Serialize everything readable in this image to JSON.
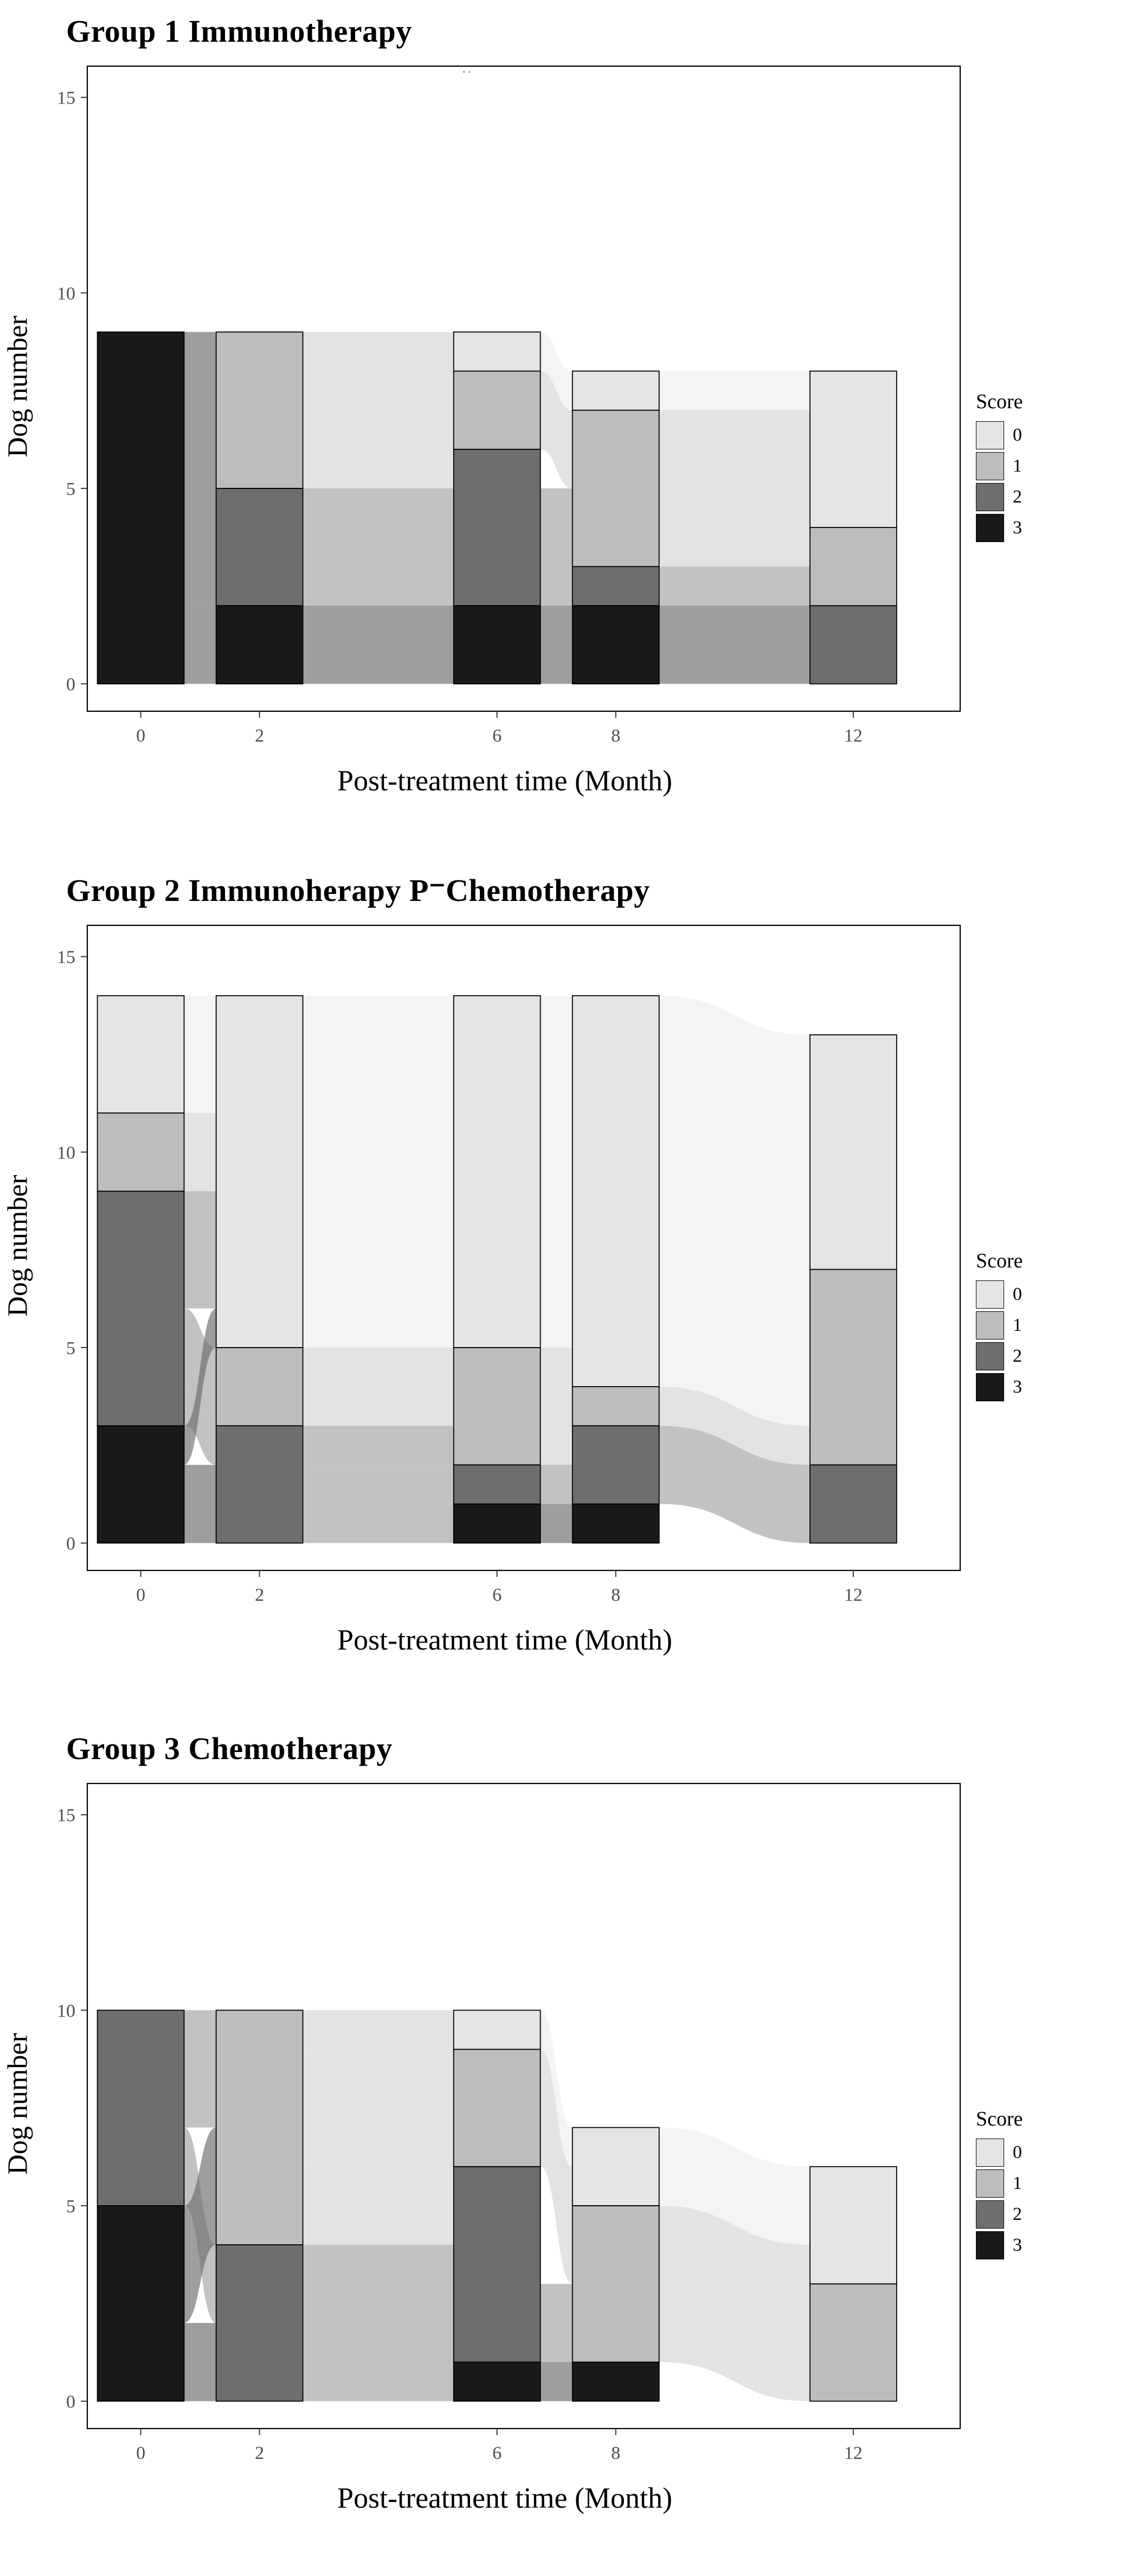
{
  "figure": {
    "background": "#ffffff",
    "artifact_dots": ".."
  },
  "chart_data": [
    {
      "type": "alluvial-stacked-bar",
      "title": "Group 1 Immunotherapy",
      "xlabel": "Post-treatment time (Month)",
      "ylabel": "Dog number",
      "x": [
        0,
        2,
        6,
        8,
        12
      ],
      "yticks": [
        0,
        5,
        10,
        15
      ],
      "ylim": [
        0,
        15
      ],
      "legend": {
        "title": "Score",
        "entries": [
          "0",
          "1",
          "2",
          "3"
        ],
        "colors": {
          "0": "#e5e5e5",
          "1": "#bdbdbd",
          "2": "#6e6e6e",
          "3": "#191919"
        }
      },
      "bars": [
        {
          "month": 0,
          "counts": {
            "0": 0,
            "1": 0,
            "2": 0,
            "3": 9
          }
        },
        {
          "month": 2,
          "counts": {
            "0": 0,
            "1": 4,
            "2": 3,
            "3": 2
          }
        },
        {
          "month": 6,
          "counts": {
            "0": 1,
            "1": 2,
            "2": 4,
            "3": 2
          }
        },
        {
          "month": 8,
          "counts": {
            "0": 1,
            "1": 4,
            "2": 1,
            "3": 2
          }
        },
        {
          "month": 12,
          "counts": {
            "0": 4,
            "1": 2,
            "2": 2,
            "3": 0
          }
        }
      ],
      "flows": [
        {
          "from_month": 0,
          "to_month": 2,
          "moves": [
            [
              3,
              3,
              2
            ],
            [
              3,
              2,
              3
            ],
            [
              3,
              1,
              4
            ]
          ]
        },
        {
          "from_month": 2,
          "to_month": 6,
          "moves": [
            [
              3,
              3,
              2
            ],
            [
              2,
              2,
              3
            ],
            [
              1,
              2,
              1
            ],
            [
              1,
              1,
              2
            ],
            [
              1,
              0,
              1
            ]
          ]
        },
        {
          "from_month": 6,
          "to_month": 8,
          "moves": [
            [
              3,
              3,
              2
            ],
            [
              2,
              2,
              1
            ],
            [
              2,
              1,
              2
            ],
            [
              1,
              1,
              2
            ],
            [
              0,
              0,
              1
            ]
          ]
        },
        {
          "from_month": 8,
          "to_month": 12,
          "moves": [
            [
              3,
              2,
              2
            ],
            [
              2,
              1,
              1
            ],
            [
              1,
              1,
              1
            ],
            [
              1,
              0,
              3
            ],
            [
              0,
              0,
              1
            ]
          ]
        }
      ]
    },
    {
      "type": "alluvial-stacked-bar",
      "title": "Group 2 Immunoherapy P⁻Chemotherapy",
      "xlabel": "Post-treatment time (Month)",
      "ylabel": "Dog number",
      "x": [
        0,
        2,
        6,
        8,
        12
      ],
      "yticks": [
        0,
        5,
        10,
        15
      ],
      "ylim": [
        0,
        15
      ],
      "legend": {
        "title": "Score",
        "entries": [
          "0",
          "1",
          "2",
          "3"
        ],
        "colors": {
          "0": "#e5e5e5",
          "1": "#bdbdbd",
          "2": "#6e6e6e",
          "3": "#191919"
        }
      },
      "bars": [
        {
          "month": 0,
          "counts": {
            "0": 3,
            "1": 2,
            "2": 6,
            "3": 3
          }
        },
        {
          "month": 2,
          "counts": {
            "0": 9,
            "1": 2,
            "2": 3,
            "3": 0
          }
        },
        {
          "month": 6,
          "counts": {
            "0": 9,
            "1": 3,
            "2": 1,
            "3": 1
          }
        },
        {
          "month": 8,
          "counts": {
            "0": 10,
            "1": 1,
            "2": 2,
            "3": 1
          }
        },
        {
          "month": 12,
          "counts": {
            "0": 6,
            "1": 5,
            "2": 2,
            "3": 0
          }
        }
      ],
      "flows": [
        {
          "from_month": 0,
          "to_month": 2,
          "moves": [
            [
              3,
              2,
              2
            ],
            [
              3,
              0,
              1
            ],
            [
              2,
              2,
              1
            ],
            [
              2,
              1,
              2
            ],
            [
              2,
              0,
              3
            ],
            [
              1,
              0,
              2
            ],
            [
              0,
              0,
              3
            ]
          ]
        },
        {
          "from_month": 2,
          "to_month": 6,
          "moves": [
            [
              2,
              3,
              1
            ],
            [
              2,
              2,
              1
            ],
            [
              2,
              1,
              1
            ],
            [
              1,
              1,
              2
            ],
            [
              0,
              0,
              9
            ]
          ]
        },
        {
          "from_month": 6,
          "to_month": 8,
          "moves": [
            [
              3,
              3,
              1
            ],
            [
              2,
              2,
              1
            ],
            [
              1,
              2,
              1
            ],
            [
              1,
              1,
              1
            ],
            [
              1,
              0,
              1
            ],
            [
              0,
              0,
              9
            ]
          ]
        },
        {
          "from_month": 8,
          "to_month": 12,
          "moves": [
            [
              2,
              2,
              2
            ],
            [
              1,
              1,
              1
            ],
            [
              0,
              1,
              4
            ],
            [
              0,
              0,
              6
            ]
          ]
        }
      ]
    },
    {
      "type": "alluvial-stacked-bar",
      "title": "Group 3 Chemotherapy",
      "xlabel": "Post-treatment time (Month)",
      "ylabel": "Dog number",
      "x": [
        0,
        2,
        6,
        8,
        12
      ],
      "yticks": [
        0,
        5,
        10,
        15
      ],
      "ylim": [
        0,
        15
      ],
      "legend": {
        "title": "Score",
        "entries": [
          "0",
          "1",
          "2",
          "3"
        ],
        "colors": {
          "0": "#e5e5e5",
          "1": "#bdbdbd",
          "2": "#6e6e6e",
          "3": "#191919"
        }
      },
      "bars": [
        {
          "month": 0,
          "counts": {
            "0": 0,
            "1": 0,
            "2": 5,
            "3": 5
          }
        },
        {
          "month": 2,
          "counts": {
            "0": 0,
            "1": 6,
            "2": 4,
            "3": 0
          }
        },
        {
          "month": 6,
          "counts": {
            "0": 1,
            "1": 3,
            "2": 5,
            "3": 1
          }
        },
        {
          "month": 8,
          "counts": {
            "0": 2,
            "1": 4,
            "2": 0,
            "3": 1
          }
        },
        {
          "month": 12,
          "counts": {
            "0": 3,
            "1": 3,
            "2": 0,
            "3": 0
          }
        }
      ],
      "flows": [
        {
          "from_month": 0,
          "to_month": 2,
          "moves": [
            [
              3,
              2,
              2
            ],
            [
              3,
              1,
              3
            ],
            [
              2,
              2,
              2
            ],
            [
              2,
              1,
              3
            ]
          ]
        },
        {
          "from_month": 2,
          "to_month": 6,
          "moves": [
            [
              2,
              3,
              1
            ],
            [
              2,
              2,
              3
            ],
            [
              1,
              2,
              2
            ],
            [
              1,
              1,
              3
            ],
            [
              1,
              0,
              1
            ]
          ]
        },
        {
          "from_month": 6,
          "to_month": 8,
          "moves": [
            [
              3,
              3,
              1
            ],
            [
              2,
              1,
              2
            ],
            [
              1,
              1,
              2
            ],
            [
              1,
              0,
              1
            ],
            [
              0,
              0,
              1
            ]
          ]
        },
        {
          "from_month": 8,
          "to_month": 12,
          "moves": [
            [
              1,
              1,
              3
            ],
            [
              1,
              0,
              1
            ],
            [
              0,
              0,
              2
            ]
          ]
        }
      ]
    }
  ]
}
